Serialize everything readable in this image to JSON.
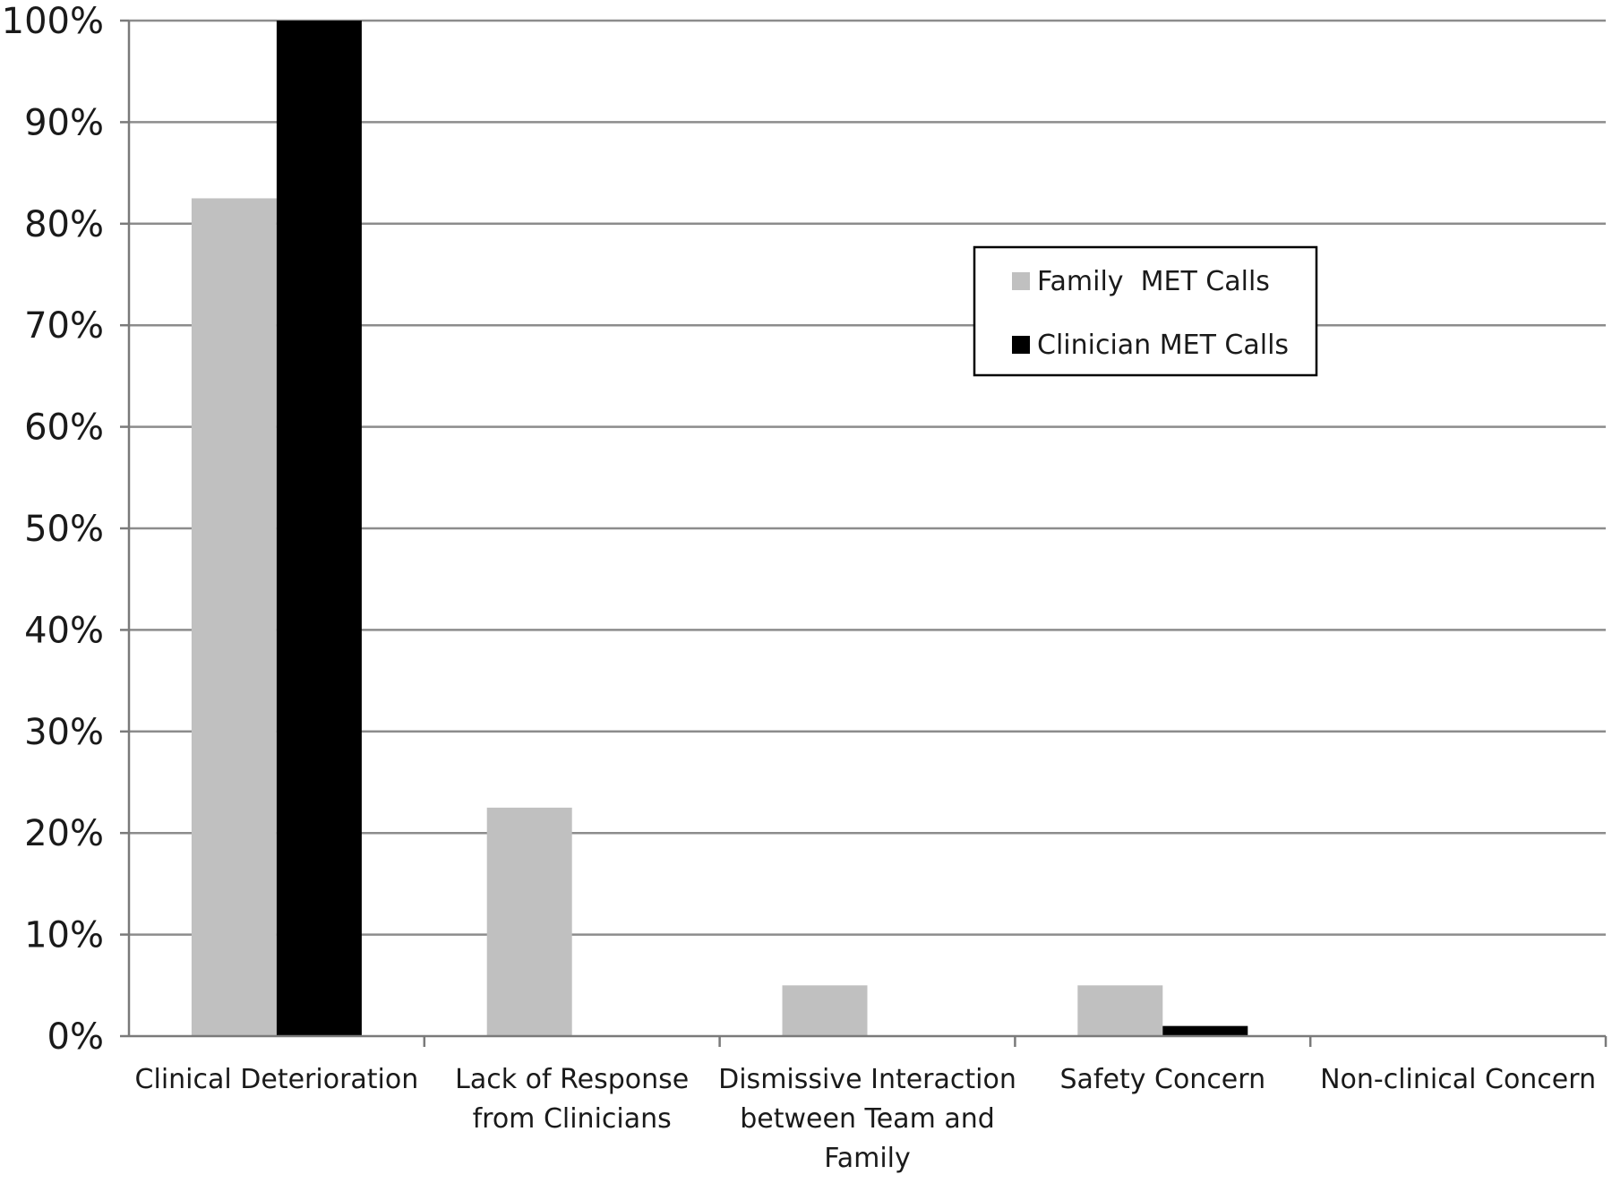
{
  "chart_data": {
    "type": "bar",
    "title": "",
    "xlabel": "",
    "ylabel": "",
    "categories": [
      [
        "Clinical Deterioration"
      ],
      [
        "Lack of Response",
        "from Clinicians"
      ],
      [
        "Dismissive Interaction",
        "between Team and",
        "Family"
      ],
      [
        "Safety Concern"
      ],
      [
        "Non-clinical Concern"
      ]
    ],
    "series": [
      {
        "name": "Family  MET Calls",
        "values": [
          82.5,
          22.5,
          5,
          5,
          0
        ],
        "color": "#c0c0c0"
      },
      {
        "name": "Clinician MET Calls",
        "values": [
          100,
          0,
          0,
          1,
          0
        ],
        "color": "#000000"
      }
    ],
    "ylim": [
      0,
      100
    ],
    "yticks": [
      "0%",
      "10%",
      "20%",
      "30%",
      "40%",
      "50%",
      "60%",
      "70%",
      "80%",
      "90%",
      "100%"
    ],
    "grid": true,
    "legend_position": "upper-right"
  }
}
